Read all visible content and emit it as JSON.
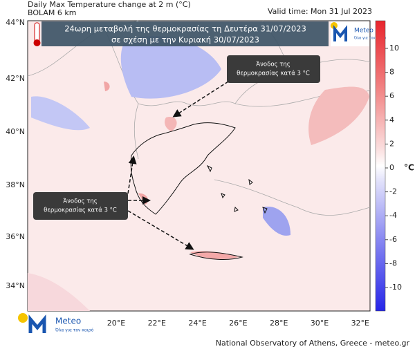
{
  "header": {
    "title": "Daily Max Temperature change at 2 m (°C)",
    "model": "BOLAM 6 km",
    "valid_time": "Valid time: Mon 31 Jul 2023"
  },
  "banner": {
    "line1": "24ωρη μεταβολή της θερμοκρασίας τη Δευτέρα 31/07/2023",
    "line2": "σε σχέση με την Κυριακή 30/07/2023"
  },
  "callouts": [
    {
      "line1": "Άνοδος της",
      "line2": "θερμοκρασίας κατά 3 °C"
    },
    {
      "line1": "Άνοδος της",
      "line2": "θερμοκρασίας κατά 3 °C"
    }
  ],
  "latitude_labels": [
    "44°N",
    "42°N",
    "40°N",
    "38°N",
    "36°N",
    "34°N"
  ],
  "longitude_labels": [
    "20°E",
    "22°E",
    "24°E",
    "26°E",
    "28°E",
    "30°E",
    "32°E"
  ],
  "colorbar": {
    "ticks": [
      10,
      8,
      6,
      4,
      2,
      0,
      -2,
      -4,
      -6,
      -8,
      -10
    ],
    "unit": "°C"
  },
  "logos": [
    {
      "name": "Meteo",
      "tagline": "Όλα για τον καιρό"
    },
    {
      "name": "Meteo",
      "tagline": "Όλα για τον καιρό"
    }
  ],
  "footer": "National Observatory of Athens, Greece - meteo.gr"
}
